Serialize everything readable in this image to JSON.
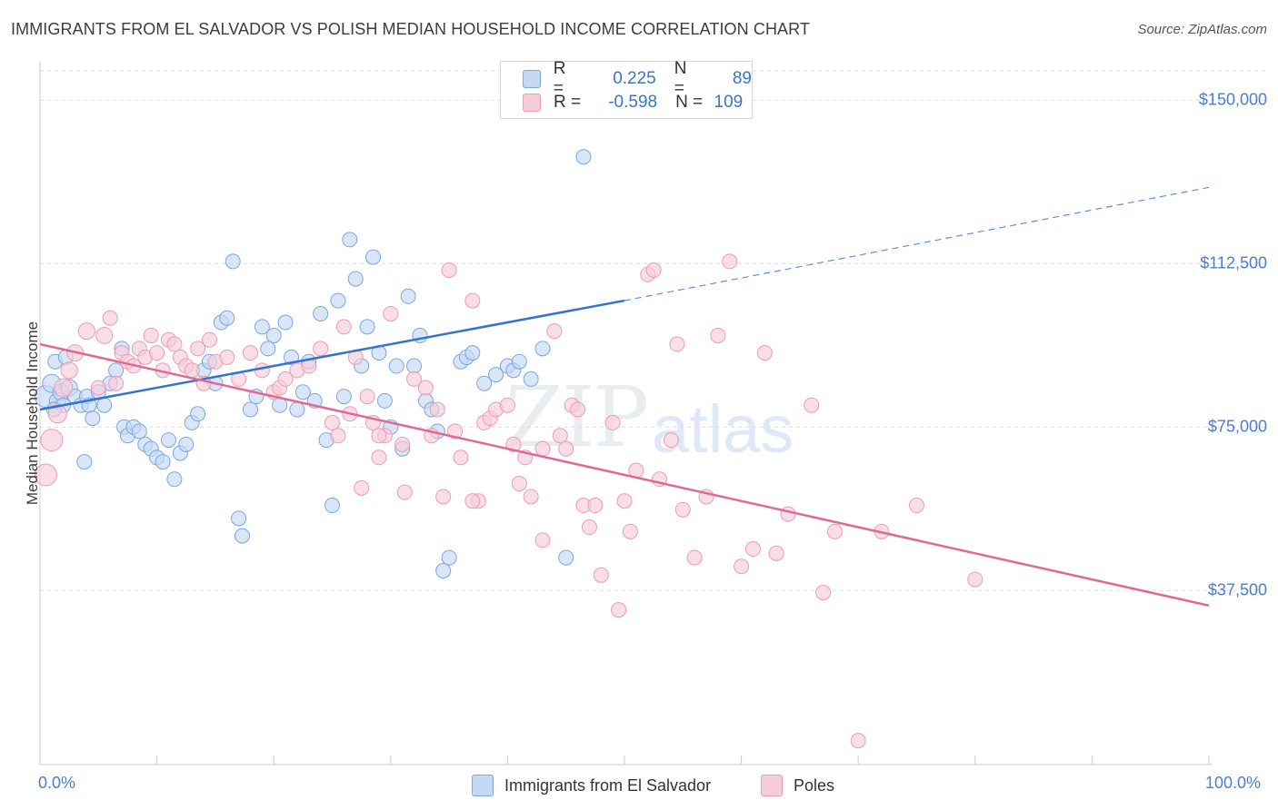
{
  "title": "IMMIGRANTS FROM EL SALVADOR VS POLISH MEDIAN HOUSEHOLD INCOME CORRELATION CHART",
  "source": "Source: ZipAtlas.com",
  "watermark": {
    "part1": "ZIP",
    "part2": "atlas"
  },
  "legend_top": {
    "rows": [
      {
        "r_label": "R =",
        "r_value": "0.225",
        "n_label": "N =",
        "n_value": "89"
      },
      {
        "r_label": "R =",
        "r_value": "-0.598",
        "n_label": "N =",
        "n_value": "109"
      }
    ]
  },
  "legend_bottom": {
    "series1": "Immigrants from El Salvador",
    "series2": "Poles"
  },
  "colors": {
    "blue_fill": "#c5d9f5",
    "blue_stroke": "#7ba6e0",
    "blue_line": "#3573d1",
    "pink_fill": "#f7cdd9",
    "pink_stroke": "#ec9bb5",
    "pink_line": "#e06893",
    "grid": "#dcdcdc",
    "tick_text": "#4a7fd0"
  },
  "chart_data": {
    "type": "scatter",
    "title": "IMMIGRANTS FROM EL SALVADOR VS POLISH MEDIAN HOUSEHOLD INCOME CORRELATION CHART",
    "xlabel": "",
    "ylabel": "Median Household Income",
    "xlim": [
      0,
      100
    ],
    "ylim": [
      0,
      158000
    ],
    "x_tick_labels": [
      "0.0%",
      "100.0%"
    ],
    "y_ticks": [
      37500,
      75000,
      112500,
      150000
    ],
    "y_tick_labels": [
      "$37,500",
      "$75,000",
      "$112,500",
      "$150,000"
    ],
    "grid": true,
    "legend_placement": "top-center",
    "series": [
      {
        "name": "Immigrants from El Salvador",
        "r": 0.225,
        "n": 89,
        "trend": {
          "x": [
            0,
            50
          ],
          "y": [
            79000,
            104000
          ],
          "dashed_extension_to": [
            100,
            130000
          ]
        },
        "points": [
          [
            0.5,
            82000,
            12
          ],
          [
            1,
            85000,
            10
          ],
          [
            1.5,
            81000,
            9
          ],
          [
            1.8,
            83000,
            9
          ],
          [
            2,
            80000,
            8
          ],
          [
            1.2,
            79000,
            8
          ],
          [
            2.5,
            84000,
            9
          ],
          [
            3,
            82000,
            8
          ],
          [
            1.3,
            90000,
            8
          ],
          [
            2.2,
            91000,
            8
          ],
          [
            3.5,
            80000,
            8
          ],
          [
            4,
            82000,
            8
          ],
          [
            4.2,
            80000,
            8
          ],
          [
            4.5,
            77000,
            8
          ],
          [
            5,
            83000,
            8
          ],
          [
            5.5,
            80000,
            8
          ],
          [
            6,
            85000,
            8
          ],
          [
            6.5,
            88000,
            8
          ],
          [
            7,
            93000,
            8
          ],
          [
            7.2,
            75000,
            8
          ],
          [
            7.5,
            73000,
            8
          ],
          [
            8,
            75000,
            8
          ],
          [
            8.5,
            74000,
            8
          ],
          [
            9,
            71000,
            8
          ],
          [
            9.5,
            70000,
            8
          ],
          [
            10,
            68000,
            8
          ],
          [
            10.5,
            67000,
            8
          ],
          [
            11,
            72000,
            8
          ],
          [
            11.5,
            63000,
            8
          ],
          [
            12,
            69000,
            8
          ],
          [
            12.5,
            71000,
            8
          ],
          [
            13,
            76000,
            8
          ],
          [
            13.5,
            78000,
            8
          ],
          [
            14,
            88000,
            8
          ],
          [
            14.5,
            90000,
            8
          ],
          [
            15,
            85000,
            8
          ],
          [
            15.5,
            99000,
            8
          ],
          [
            16,
            100000,
            8
          ],
          [
            16.5,
            113000,
            8
          ],
          [
            17,
            54000,
            8
          ],
          [
            17.3,
            50000,
            8
          ],
          [
            18,
            79000,
            8
          ],
          [
            18.5,
            82000,
            8
          ],
          [
            19,
            98000,
            8
          ],
          [
            19.5,
            93000,
            8
          ],
          [
            20,
            96000,
            8
          ],
          [
            20.5,
            80000,
            8
          ],
          [
            21,
            99000,
            8
          ],
          [
            21.5,
            91000,
            8
          ],
          [
            22,
            79000,
            8
          ],
          [
            22.5,
            83000,
            8
          ],
          [
            23,
            90000,
            8
          ],
          [
            23.5,
            81000,
            8
          ],
          [
            24,
            101000,
            8
          ],
          [
            24.5,
            72000,
            8
          ],
          [
            25,
            57000,
            8
          ],
          [
            25.5,
            104000,
            8
          ],
          [
            26,
            82000,
            8
          ],
          [
            26.5,
            118000,
            8
          ],
          [
            27,
            109000,
            8
          ],
          [
            27.5,
            89000,
            8
          ],
          [
            28,
            98000,
            8
          ],
          [
            28.5,
            114000,
            8
          ],
          [
            29,
            92000,
            8
          ],
          [
            29.5,
            81000,
            8
          ],
          [
            30,
            75000,
            8
          ],
          [
            30.5,
            89000,
            8
          ],
          [
            31,
            70000,
            8
          ],
          [
            31.5,
            105000,
            8
          ],
          [
            32,
            89000,
            8
          ],
          [
            32.5,
            96000,
            8
          ],
          [
            33,
            81000,
            8
          ],
          [
            33.5,
            79000,
            8
          ],
          [
            34,
            74000,
            8
          ],
          [
            34.5,
            42000,
            8
          ],
          [
            35,
            45000,
            8
          ],
          [
            36,
            90000,
            8
          ],
          [
            36.5,
            91000,
            8
          ],
          [
            37,
            92000,
            8
          ],
          [
            38,
            85000,
            8
          ],
          [
            39,
            87000,
            8
          ],
          [
            40,
            89000,
            8
          ],
          [
            40.5,
            88000,
            8
          ],
          [
            41,
            90000,
            8
          ],
          [
            42,
            86000,
            8
          ],
          [
            43,
            93000,
            8
          ],
          [
            45,
            45000,
            8
          ],
          [
            46.5,
            137000,
            8
          ],
          [
            3.8,
            67000,
            8
          ]
        ]
      },
      {
        "name": "Poles",
        "r": -0.598,
        "n": 109,
        "trend": {
          "x": [
            0,
            100
          ],
          "y": [
            94000,
            34000
          ]
        },
        "points": [
          [
            0.5,
            64000,
            12
          ],
          [
            1,
            72000,
            12
          ],
          [
            1.5,
            78000,
            10
          ],
          [
            2,
            84000,
            10
          ],
          [
            2.5,
            88000,
            9
          ],
          [
            3,
            92000,
            9
          ],
          [
            4,
            97000,
            9
          ],
          [
            5,
            84000,
            8
          ],
          [
            5.5,
            96000,
            9
          ],
          [
            6,
            100000,
            8
          ],
          [
            6.5,
            85000,
            8
          ],
          [
            7,
            92000,
            8
          ],
          [
            7.5,
            90000,
            8
          ],
          [
            8,
            89000,
            8
          ],
          [
            8.5,
            93000,
            8
          ],
          [
            9,
            91000,
            8
          ],
          [
            9.5,
            96000,
            8
          ],
          [
            10,
            92000,
            8
          ],
          [
            10.5,
            88000,
            8
          ],
          [
            11,
            95000,
            8
          ],
          [
            11.5,
            94000,
            8
          ],
          [
            12,
            91000,
            8
          ],
          [
            12.5,
            89000,
            8
          ],
          [
            13,
            88000,
            8
          ],
          [
            13.5,
            93000,
            8
          ],
          [
            14,
            85000,
            8
          ],
          [
            14.5,
            95000,
            8
          ],
          [
            15,
            90000,
            8
          ],
          [
            16,
            91000,
            8
          ],
          [
            17,
            86000,
            8
          ],
          [
            18,
            92000,
            8
          ],
          [
            19,
            88000,
            8
          ],
          [
            20,
            83000,
            8
          ],
          [
            20.5,
            84000,
            8
          ],
          [
            21,
            86000,
            8
          ],
          [
            22,
            88000,
            8
          ],
          [
            23,
            89000,
            8
          ],
          [
            24,
            93000,
            8
          ],
          [
            25,
            76000,
            8
          ],
          [
            25.5,
            73000,
            8
          ],
          [
            26,
            98000,
            8
          ],
          [
            27,
            91000,
            8
          ],
          [
            27.5,
            61000,
            8
          ],
          [
            28,
            82000,
            8
          ],
          [
            28.5,
            76000,
            8
          ],
          [
            29,
            68000,
            8
          ],
          [
            29.5,
            73000,
            8
          ],
          [
            30,
            101000,
            8
          ],
          [
            31,
            71000,
            8
          ],
          [
            32,
            86000,
            8
          ],
          [
            33,
            84000,
            8
          ],
          [
            33.5,
            73000,
            8
          ],
          [
            34,
            79000,
            8
          ],
          [
            34.5,
            59000,
            8
          ],
          [
            35,
            111000,
            8
          ],
          [
            35.5,
            74000,
            8
          ],
          [
            36,
            68000,
            8
          ],
          [
            37,
            104000,
            8
          ],
          [
            37.5,
            58000,
            8
          ],
          [
            38,
            76000,
            8
          ],
          [
            38.5,
            77000,
            8
          ],
          [
            39,
            79000,
            8
          ],
          [
            40,
            80000,
            8
          ],
          [
            40.5,
            71000,
            8
          ],
          [
            41,
            62000,
            8
          ],
          [
            41.5,
            68000,
            8
          ],
          [
            42,
            59000,
            8
          ],
          [
            43,
            49000,
            8
          ],
          [
            44,
            97000,
            8
          ],
          [
            44.5,
            73000,
            8
          ],
          [
            45,
            70000,
            8
          ],
          [
            45.5,
            80000,
            8
          ],
          [
            46,
            79000,
            8
          ],
          [
            46.5,
            57000,
            8
          ],
          [
            47,
            52000,
            8
          ],
          [
            47.5,
            57000,
            8
          ],
          [
            48,
            41000,
            8
          ],
          [
            49,
            76000,
            8
          ],
          [
            49.5,
            33000,
            8
          ],
          [
            50,
            58000,
            8
          ],
          [
            50.5,
            51000,
            8
          ],
          [
            51,
            65000,
            8
          ],
          [
            52,
            110000,
            8
          ],
          [
            52.5,
            111000,
            8
          ],
          [
            53,
            63000,
            8
          ],
          [
            54,
            72000,
            8
          ],
          [
            54.5,
            94000,
            8
          ],
          [
            55,
            56000,
            8
          ],
          [
            56,
            45000,
            8
          ],
          [
            57,
            59000,
            8
          ],
          [
            58,
            96000,
            8
          ],
          [
            59,
            113000,
            8
          ],
          [
            60,
            43000,
            8
          ],
          [
            61,
            47000,
            8
          ],
          [
            62,
            92000,
            8
          ],
          [
            63,
            46000,
            8
          ],
          [
            64,
            55000,
            8
          ],
          [
            66,
            80000,
            8
          ],
          [
            67,
            37000,
            8
          ],
          [
            68,
            51000,
            8
          ],
          [
            70,
            3000,
            8
          ],
          [
            72,
            51000,
            8
          ],
          [
            75,
            57000,
            8
          ],
          [
            80,
            40000,
            8
          ],
          [
            29,
            73000,
            8
          ],
          [
            43,
            70000,
            8
          ],
          [
            37,
            58000,
            8
          ],
          [
            26.5,
            78000,
            8
          ],
          [
            31.2,
            60000,
            8
          ]
        ]
      }
    ]
  }
}
